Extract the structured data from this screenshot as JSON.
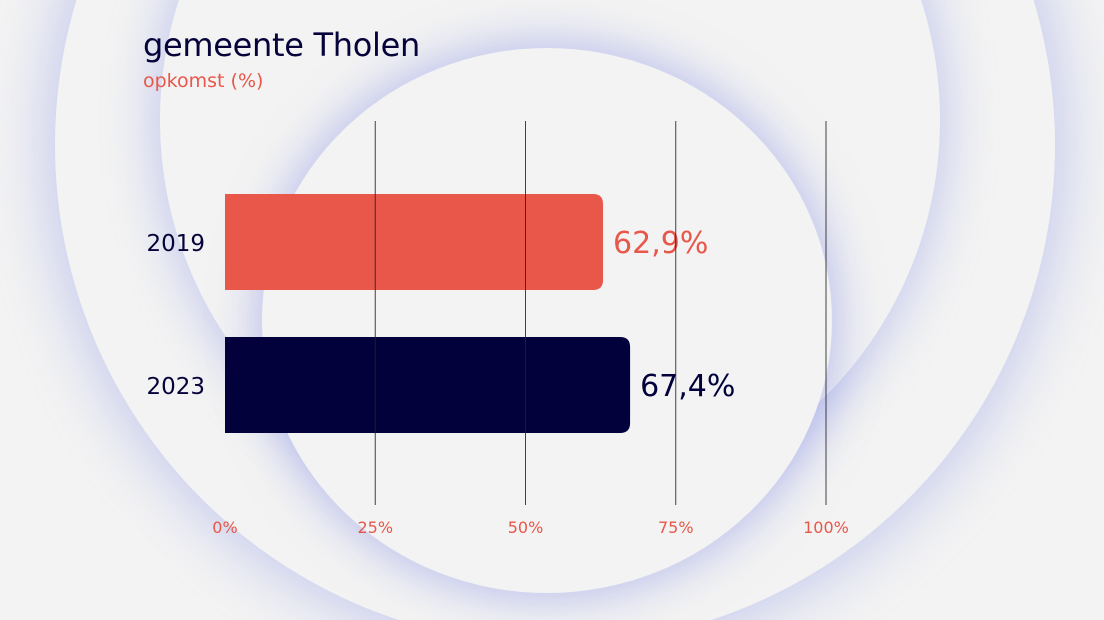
{
  "colors": {
    "background": "#f3f3f3",
    "bar_2019": "#e8574a",
    "bar_2023": "#02013b",
    "tick_label": "#e8574a",
    "gridline": "#222222",
    "ring_glow": "#8c96e6"
  },
  "chart_data": {
    "type": "bar",
    "orientation": "horizontal",
    "title": "gemeente Tholen",
    "subtitle": "opkomst (%)",
    "categories": [
      "2019",
      "2023"
    ],
    "values": [
      62.9,
      67.4
    ],
    "value_labels": [
      "62,9%",
      "67,4%"
    ],
    "bar_colors": [
      "#e8574a",
      "#02013b"
    ],
    "value_label_colors": [
      "#e8574a",
      "#02013b"
    ],
    "xlim": [
      0,
      100
    ],
    "x_ticks": [
      0,
      25,
      50,
      75,
      100
    ],
    "x_tick_labels": [
      "0%",
      "25%",
      "50%",
      "75%",
      "100%"
    ],
    "grid": true,
    "legend": "none"
  }
}
